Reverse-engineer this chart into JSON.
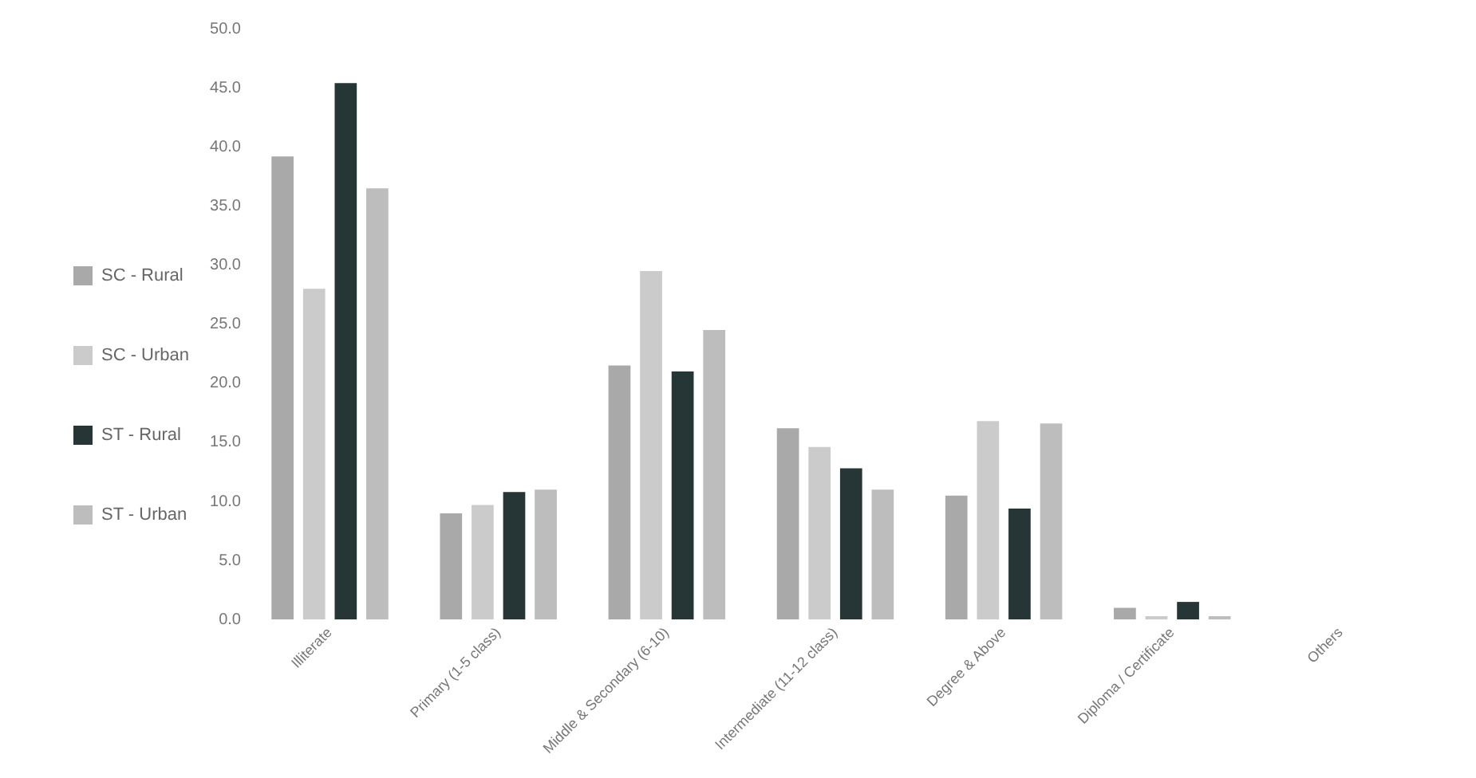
{
  "chart_data": {
    "type": "bar",
    "categories": [
      "Illiterate",
      "Primary (1-5 class)",
      "Middle & Secondary (6-10)",
      "Intermediate (11-12 class)",
      "Degree & Above",
      "Diploma / Certificate",
      "Others"
    ],
    "series": [
      {
        "name": "SC - Rural",
        "color": "#a9a9a9",
        "values": [
          39.2,
          9.0,
          21.5,
          16.2,
          10.5,
          1.0,
          0
        ]
      },
      {
        "name": "SC - Urban",
        "color": "#cbcbcb",
        "values": [
          28.0,
          9.7,
          29.5,
          14.6,
          16.8,
          0.3,
          0
        ]
      },
      {
        "name": "ST - Rural",
        "color": "#263636",
        "values": [
          45.4,
          10.8,
          21.0,
          12.8,
          9.4,
          1.5,
          0
        ]
      },
      {
        "name": "ST - Urban",
        "color": "#bdbdbd",
        "values": [
          36.5,
          11.0,
          24.5,
          11.0,
          16.6,
          0.3,
          0
        ]
      }
    ],
    "ylim": [
      0,
      50
    ],
    "yticks": [
      {
        "value": 0,
        "label": "0.0"
      },
      {
        "value": 5,
        "label": "5.0"
      },
      {
        "value": 10,
        "label": "10.0"
      },
      {
        "value": 15,
        "label": "15.0"
      },
      {
        "value": 20,
        "label": "20.0"
      },
      {
        "value": 25,
        "label": "25.0"
      },
      {
        "value": 30,
        "label": "30.0"
      },
      {
        "value": 35,
        "label": "35.0"
      },
      {
        "value": 40,
        "label": "40.0"
      },
      {
        "value": 45,
        "label": "45.0"
      },
      {
        "value": 50,
        "label": "50.0"
      }
    ],
    "grid": false,
    "legend": "left"
  }
}
